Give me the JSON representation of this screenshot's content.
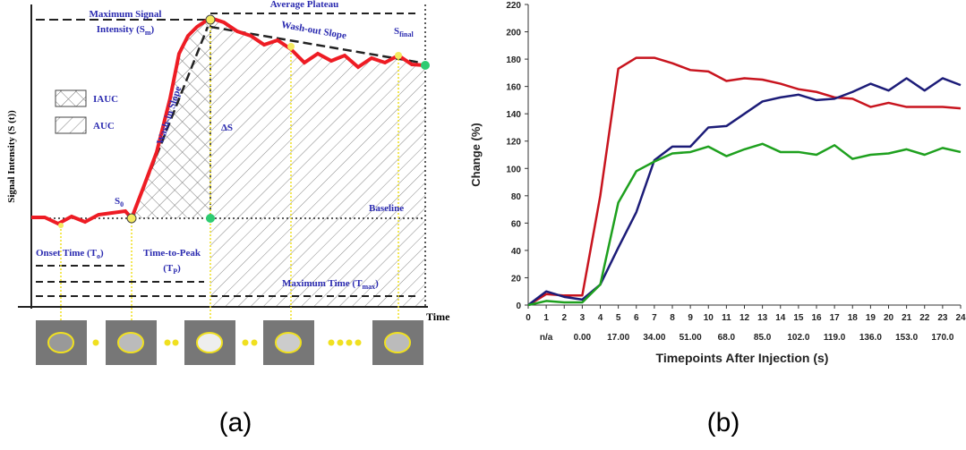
{
  "diagram": {
    "average_plateau": "Average Plateau",
    "max_signal_1": "Maximum Signal",
    "max_signal_2": [
      "Intensity (S",
      "m",
      ")"
    ],
    "wash_out": "Wash-out Slope",
    "s_final": [
      "S",
      "final"
    ],
    "iauc": "IAUC",
    "auc": "AUC",
    "wash_in": "Wash-in Slope",
    "delta_s": "ΔS",
    "s0": [
      "S",
      "0"
    ],
    "baseline": "Baseline",
    "onset": [
      "Onset Time (T",
      "o",
      ")"
    ],
    "ttp_1": "Time-to-Peak",
    "ttp_2": [
      "(T",
      "P",
      ")"
    ],
    "max_time": [
      "Maximum Time (T",
      "max",
      ")"
    ],
    "y_label": "Signal Intensity (S (t))",
    "x_label": "Time",
    "caption": "(a)"
  },
  "chart_data": {
    "type": "line",
    "caption": "(b)",
    "x_label": "Timepoints After Injection (s)",
    "y_label": "Change (%)",
    "x": [
      0,
      1,
      2,
      3,
      4,
      5,
      6,
      7,
      8,
      9,
      10,
      11,
      12,
      13,
      14,
      15,
      16,
      17,
      18,
      19,
      20,
      21,
      22,
      23,
      24
    ],
    "xlim": [
      0,
      24
    ],
    "xticks": [
      0,
      1,
      2,
      3,
      4,
      5,
      6,
      7,
      8,
      9,
      10,
      11,
      12,
      13,
      14,
      15,
      16,
      17,
      18,
      19,
      20,
      21,
      22,
      23,
      24
    ],
    "secondary_xticks": [
      {
        "value": 1,
        "label": "n/a"
      },
      {
        "value": 3,
        "label": "0.00"
      },
      {
        "value": 5,
        "label": "17.00"
      },
      {
        "value": 7,
        "label": "34.00"
      },
      {
        "value": 9,
        "label": "51.00"
      },
      {
        "value": 11,
        "label": "68.0"
      },
      {
        "value": 13,
        "label": "85.0"
      },
      {
        "value": 15,
        "label": "102.0"
      },
      {
        "value": 17,
        "label": "119.0"
      },
      {
        "value": 19,
        "label": "136.0"
      },
      {
        "value": 21,
        "label": "153.0"
      },
      {
        "value": 23,
        "label": "170.0"
      }
    ],
    "ylim": [
      0,
      220
    ],
    "yticks": [
      0,
      20,
      40,
      60,
      80,
      100,
      120,
      140,
      160,
      180,
      200,
      220
    ],
    "grid": false,
    "series": [
      {
        "color": "#c8141e",
        "values": [
          0,
          8,
          7,
          7,
          80,
          173,
          181,
          181,
          177,
          172,
          171,
          164,
          166,
          165,
          162,
          158,
          156,
          152,
          151,
          145,
          148,
          145,
          145,
          145,
          144
        ]
      },
      {
        "color": "#1c1c78",
        "values": [
          0,
          10,
          6,
          4,
          15,
          42,
          68,
          106,
          116,
          116,
          130,
          131,
          140,
          149,
          152,
          154,
          150,
          151,
          156,
          162,
          157,
          166,
          157,
          166,
          161
        ]
      },
      {
        "color": "#1ea01e",
        "values": [
          0,
          3,
          2,
          2,
          15,
          75,
          98,
          105,
          111,
          112,
          116,
          109,
          114,
          118,
          112,
          112,
          110,
          117,
          107,
          110,
          111,
          114,
          110,
          115,
          112
        ]
      }
    ]
  }
}
